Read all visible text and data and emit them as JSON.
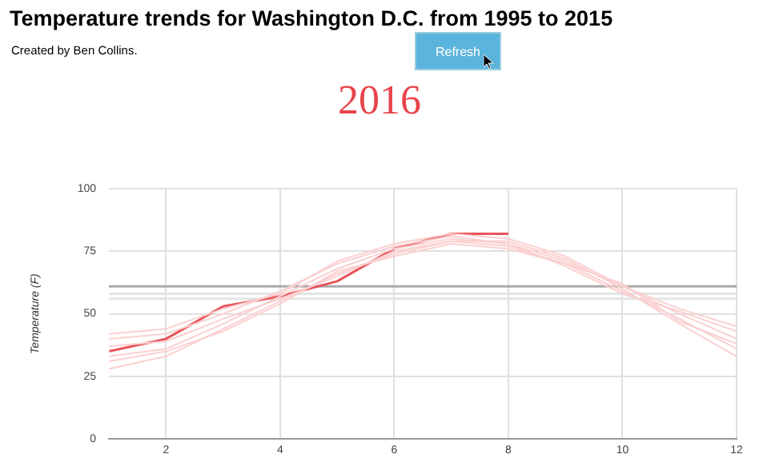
{
  "chart_data": {
    "type": "line",
    "title": "Temperature trends for Washington D.C. from 1995 to 2015",
    "subtitle": "Created by Ben Collins.",
    "annotations": [
      "2016",
      "Refresh"
    ],
    "ylabel": "Temperature (F)",
    "x": [
      1,
      2,
      3,
      4,
      5,
      6,
      7,
      8,
      9,
      10,
      11,
      12
    ],
    "xlim": [
      1,
      12
    ],
    "xticks": [
      2,
      4,
      6,
      8,
      10,
      12
    ],
    "ylim": [
      0,
      100
    ],
    "yticks": [
      0,
      25,
      50,
      75,
      100
    ],
    "grid": true,
    "legend": false,
    "marker": "none",
    "line_style": "solid",
    "ref_lines": [
      {
        "axis": "y",
        "value": 61,
        "color": "#aaaaaa"
      },
      {
        "axis": "y",
        "value": 58,
        "color": "#e4e4e4"
      },
      {
        "axis": "y",
        "value": 56,
        "color": "#e4e4e4"
      }
    ],
    "series": [
      {
        "color": "#fbd0d0",
        "values": [
          28,
          33,
          44,
          55,
          66,
          74,
          79,
          77,
          70,
          59,
          48,
          36
        ]
      },
      {
        "color": "#fbd0d0",
        "values": [
          33,
          36,
          46,
          57,
          68,
          76,
          80,
          78,
          71,
          61,
          50,
          40
        ]
      },
      {
        "color": "#fbd0d0",
        "values": [
          37,
          39,
          48,
          56,
          65,
          75,
          79,
          79,
          72,
          60,
          46,
          33
        ]
      },
      {
        "color": "#fbd0d0",
        "values": [
          40,
          42,
          50,
          59,
          70,
          77,
          81,
          78,
          69,
          58,
          51,
          43
        ]
      },
      {
        "color": "#fbd0d0",
        "values": [
          31,
          35,
          43,
          54,
          67,
          73,
          78,
          76,
          70,
          62,
          47,
          38
        ]
      },
      {
        "color": "#fbd0d0",
        "values": [
          42,
          44,
          52,
          58,
          71,
          78,
          82,
          80,
          73,
          61,
          52,
          45
        ]
      },
      {
        "color": "#e8555a",
        "values": [
          35,
          40,
          53,
          57,
          63,
          76,
          82,
          82,
          null,
          null,
          null,
          null
        ]
      }
    ]
  }
}
